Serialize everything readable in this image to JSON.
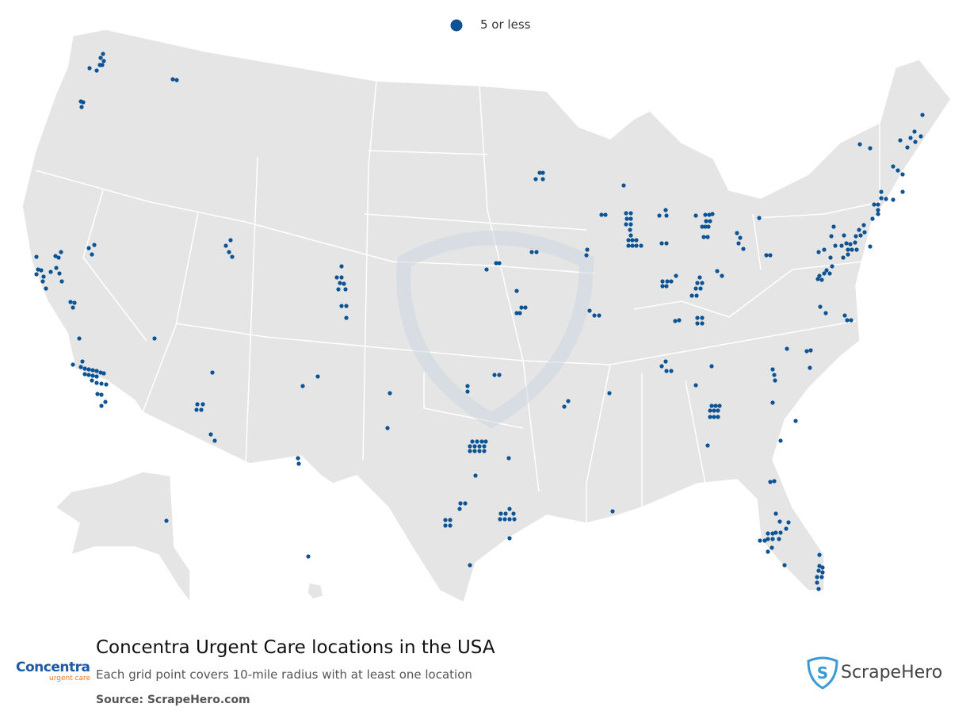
{
  "legend": {
    "label": "5 or less"
  },
  "title": "Concentra Urgent Care locations in the USA",
  "subtitle": "Each grid point covers 10-mile radius with at least one location",
  "source": "Source: ScrapeHero.com",
  "brand": {
    "name": "Concentra",
    "tagline": "urgent care"
  },
  "publisher": "ScrapeHero"
}
